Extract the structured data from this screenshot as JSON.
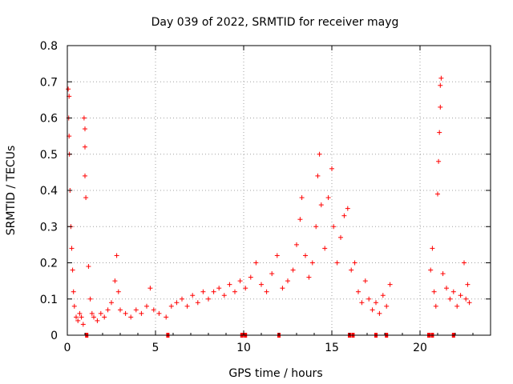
{
  "chart_data": {
    "type": "scatter",
    "title": "Day 039 of 2022, SRMTID for receiver mayg",
    "xlabel": "GPS time / hours",
    "ylabel": "SRMTID / TECUs",
    "xlim": [
      0,
      24
    ],
    "ylim": [
      0,
      0.8
    ],
    "grid": true,
    "marker": "+",
    "colors": {
      "series": "#ff0000",
      "grid": "#a0a0a0",
      "axis": "#000000"
    },
    "xticks": [
      {
        "value": 0,
        "label": "0"
      },
      {
        "value": 5,
        "label": "5"
      },
      {
        "value": 10,
        "label": "10"
      },
      {
        "value": 15,
        "label": "15"
      },
      {
        "value": 20,
        "label": "20"
      }
    ],
    "yticks": [
      {
        "value": 0,
        "label": "0"
      },
      {
        "value": 0.1,
        "label": "0.1"
      },
      {
        "value": 0.2,
        "label": "0.2"
      },
      {
        "value": 0.3,
        "label": "0.3"
      },
      {
        "value": 0.4,
        "label": "0.4"
      },
      {
        "value": 0.5,
        "label": "0.5"
      },
      {
        "value": 0.6,
        "label": "0.6"
      },
      {
        "value": 0.7,
        "label": "0.7"
      },
      {
        "value": 0.8,
        "label": "0.8"
      }
    ],
    "series": [
      {
        "name": "SRMTID",
        "points": [
          {
            "x": 0.05,
            "y": 0.68
          },
          {
            "x": 0.1,
            "y": 0.66
          },
          {
            "x": 0.08,
            "y": 0.6
          },
          {
            "x": 0.1,
            "y": 0.55
          },
          {
            "x": 0.12,
            "y": 0.5
          },
          {
            "x": 0.15,
            "y": 0.4
          },
          {
            "x": 0.2,
            "y": 0.3
          },
          {
            "x": 0.25,
            "y": 0.24
          },
          {
            "x": 0.3,
            "y": 0.18
          },
          {
            "x": 0.35,
            "y": 0.12
          },
          {
            "x": 0.4,
            "y": 0.08
          },
          {
            "x": 0.5,
            "y": 0.05
          },
          {
            "x": 0.6,
            "y": 0.04
          },
          {
            "x": 0.7,
            "y": 0.06
          },
          {
            "x": 0.8,
            "y": 0.05
          },
          {
            "x": 0.9,
            "y": 0.03
          },
          {
            "x": 0.95,
            "y": 0.6
          },
          {
            "x": 1.0,
            "y": 0.57
          },
          {
            "x": 1.0,
            "y": 0.52
          },
          {
            "x": 1.0,
            "y": 0.44
          },
          {
            "x": 1.05,
            "y": 0.38
          },
          {
            "x": 1.2,
            "y": 0.19
          },
          {
            "x": 1.3,
            "y": 0.1
          },
          {
            "x": 1.4,
            "y": 0.06
          },
          {
            "x": 1.5,
            "y": 0.05
          },
          {
            "x": 1.7,
            "y": 0.04
          },
          {
            "x": 1.9,
            "y": 0.06
          },
          {
            "x": 2.1,
            "y": 0.05
          },
          {
            "x": 2.3,
            "y": 0.07
          },
          {
            "x": 2.5,
            "y": 0.09
          },
          {
            "x": 2.7,
            "y": 0.15
          },
          {
            "x": 2.8,
            "y": 0.22
          },
          {
            "x": 2.9,
            "y": 0.12
          },
          {
            "x": 3.0,
            "y": 0.07
          },
          {
            "x": 3.3,
            "y": 0.06
          },
          {
            "x": 3.6,
            "y": 0.05
          },
          {
            "x": 3.9,
            "y": 0.07
          },
          {
            "x": 4.2,
            "y": 0.06
          },
          {
            "x": 4.5,
            "y": 0.08
          },
          {
            "x": 4.7,
            "y": 0.13
          },
          {
            "x": 4.9,
            "y": 0.07
          },
          {
            "x": 5.2,
            "y": 0.06
          },
          {
            "x": 5.6,
            "y": 0.05
          },
          {
            "x": 5.9,
            "y": 0.08
          },
          {
            "x": 6.2,
            "y": 0.09
          },
          {
            "x": 6.5,
            "y": 0.1
          },
          {
            "x": 6.8,
            "y": 0.08
          },
          {
            "x": 7.1,
            "y": 0.11
          },
          {
            "x": 7.4,
            "y": 0.09
          },
          {
            "x": 7.7,
            "y": 0.12
          },
          {
            "x": 8.0,
            "y": 0.1
          },
          {
            "x": 8.3,
            "y": 0.12
          },
          {
            "x": 8.6,
            "y": 0.13
          },
          {
            "x": 8.9,
            "y": 0.11
          },
          {
            "x": 9.2,
            "y": 0.14
          },
          {
            "x": 9.5,
            "y": 0.12
          },
          {
            "x": 9.8,
            "y": 0.15
          },
          {
            "x": 10.1,
            "y": 0.13
          },
          {
            "x": 10.4,
            "y": 0.16
          },
          {
            "x": 10.7,
            "y": 0.2
          },
          {
            "x": 11.0,
            "y": 0.14
          },
          {
            "x": 11.3,
            "y": 0.12
          },
          {
            "x": 11.6,
            "y": 0.17
          },
          {
            "x": 11.9,
            "y": 0.22
          },
          {
            "x": 12.2,
            "y": 0.13
          },
          {
            "x": 12.5,
            "y": 0.15
          },
          {
            "x": 12.8,
            "y": 0.18
          },
          {
            "x": 13.0,
            "y": 0.25
          },
          {
            "x": 13.2,
            "y": 0.32
          },
          {
            "x": 13.3,
            "y": 0.38
          },
          {
            "x": 13.5,
            "y": 0.22
          },
          {
            "x": 13.7,
            "y": 0.16
          },
          {
            "x": 13.9,
            "y": 0.2
          },
          {
            "x": 14.1,
            "y": 0.3
          },
          {
            "x": 14.2,
            "y": 0.44
          },
          {
            "x": 14.3,
            "y": 0.5
          },
          {
            "x": 14.4,
            "y": 0.36
          },
          {
            "x": 14.6,
            "y": 0.24
          },
          {
            "x": 14.8,
            "y": 0.38
          },
          {
            "x": 15.0,
            "y": 0.46
          },
          {
            "x": 15.1,
            "y": 0.3
          },
          {
            "x": 15.3,
            "y": 0.2
          },
          {
            "x": 15.5,
            "y": 0.27
          },
          {
            "x": 15.7,
            "y": 0.33
          },
          {
            "x": 15.9,
            "y": 0.35
          },
          {
            "x": 16.1,
            "y": 0.18
          },
          {
            "x": 16.3,
            "y": 0.2
          },
          {
            "x": 16.5,
            "y": 0.12
          },
          {
            "x": 16.7,
            "y": 0.09
          },
          {
            "x": 16.9,
            "y": 0.15
          },
          {
            "x": 17.1,
            "y": 0.1
          },
          {
            "x": 17.3,
            "y": 0.07
          },
          {
            "x": 17.5,
            "y": 0.09
          },
          {
            "x": 17.7,
            "y": 0.06
          },
          {
            "x": 17.9,
            "y": 0.11
          },
          {
            "x": 18.1,
            "y": 0.08
          },
          {
            "x": 18.3,
            "y": 0.14
          },
          {
            "x": 20.6,
            "y": 0.18
          },
          {
            "x": 20.7,
            "y": 0.24
          },
          {
            "x": 20.8,
            "y": 0.12
          },
          {
            "x": 20.9,
            "y": 0.08
          },
          {
            "x": 21.0,
            "y": 0.39
          },
          {
            "x": 21.05,
            "y": 0.48
          },
          {
            "x": 21.1,
            "y": 0.56
          },
          {
            "x": 21.15,
            "y": 0.63
          },
          {
            "x": 21.15,
            "y": 0.69
          },
          {
            "x": 21.2,
            "y": 0.71
          },
          {
            "x": 21.3,
            "y": 0.17
          },
          {
            "x": 21.5,
            "y": 0.13
          },
          {
            "x": 21.7,
            "y": 0.1
          },
          {
            "x": 21.9,
            "y": 0.12
          },
          {
            "x": 22.1,
            "y": 0.08
          },
          {
            "x": 22.3,
            "y": 0.11
          },
          {
            "x": 22.5,
            "y": 0.2
          },
          {
            "x": 22.6,
            "y": 0.1
          },
          {
            "x": 22.7,
            "y": 0.14
          },
          {
            "x": 22.8,
            "y": 0.09
          }
        ]
      }
    ],
    "baseline_markers": [
      1.1,
      5.7,
      9.9,
      10.1,
      12.0,
      16.0,
      16.2,
      17.5,
      18.1,
      20.5,
      20.7,
      21.9
    ]
  }
}
